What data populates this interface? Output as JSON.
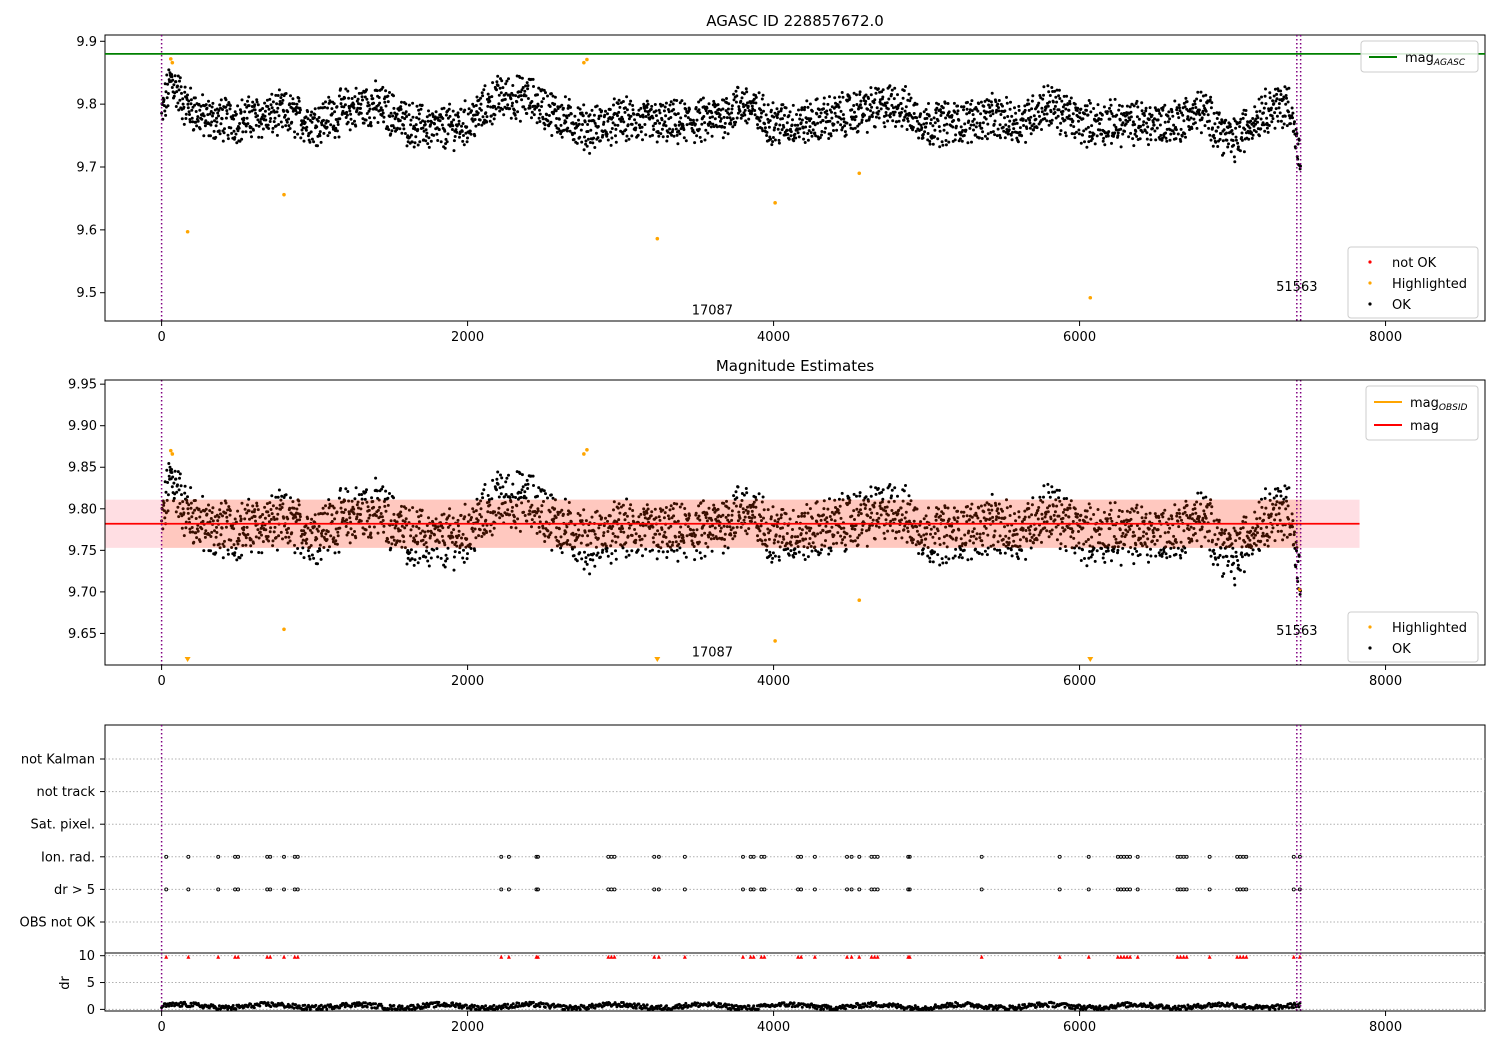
{
  "figure": {
    "title": "AGASC ID 228857672.0"
  },
  "chart_data": [
    {
      "type": "scatter",
      "subtitle": "",
      "xlim": [
        -370,
        8650
      ],
      "ylim": [
        9.455,
        9.91
      ],
      "xticks": [
        0,
        2000,
        4000,
        6000,
        8000
      ],
      "yticks": [
        9.5,
        9.6,
        9.7,
        9.8,
        9.9
      ],
      "grid": false,
      "legend": [
        {
          "label": "mag",
          "sub": "AGASC",
          "kind": "line",
          "color": "#008000",
          "placement": "top-right"
        }
      ],
      "legend2": [
        {
          "label": "not OK",
          "kind": "dot",
          "color": "#ff0000"
        },
        {
          "label": "Highlighted",
          "kind": "dot",
          "color": "#ffa500"
        },
        {
          "label": "OK",
          "kind": "dot",
          "color": "#000000"
        }
      ],
      "hlines": [
        {
          "y": 9.88,
          "color": "#008000"
        }
      ],
      "vlines": [
        {
          "x": 0,
          "color": "#800080"
        },
        {
          "x": 7420,
          "color": "#800080"
        },
        {
          "x": 7445,
          "color": "#800080"
        }
      ],
      "annotations": [
        {
          "text": "17087",
          "x": 3600,
          "y": 9.465
        },
        {
          "text": "51563",
          "x": 7420,
          "y": 9.503
        }
      ],
      "highlighted": [
        [
          60,
          9.872
        ],
        [
          70,
          9.866
        ],
        [
          170,
          9.597
        ],
        [
          800,
          9.656
        ],
        [
          2760,
          9.866
        ],
        [
          2780,
          9.871
        ],
        [
          3240,
          9.586
        ],
        [
          4010,
          9.643
        ],
        [
          4560,
          9.69
        ],
        [
          6070,
          9.492
        ]
      ],
      "trend": [
        [
          0,
          9.78
        ],
        [
          60,
          9.84
        ],
        [
          150,
          9.8
        ],
        [
          300,
          9.775
        ],
        [
          500,
          9.775
        ],
        [
          800,
          9.785
        ],
        [
          1000,
          9.77
        ],
        [
          1200,
          9.79
        ],
        [
          1400,
          9.8
        ],
        [
          1600,
          9.77
        ],
        [
          1800,
          9.76
        ],
        [
          2000,
          9.77
        ],
        [
          2200,
          9.81
        ],
        [
          2400,
          9.81
        ],
        [
          2600,
          9.78
        ],
        [
          2800,
          9.76
        ],
        [
          3000,
          9.775
        ],
        [
          3200,
          9.77
        ],
        [
          3400,
          9.77
        ],
        [
          3600,
          9.775
        ],
        [
          3800,
          9.8
        ],
        [
          4000,
          9.77
        ],
        [
          4200,
          9.77
        ],
        [
          4400,
          9.78
        ],
        [
          4600,
          9.79
        ],
        [
          4800,
          9.8
        ],
        [
          5000,
          9.77
        ],
        [
          5200,
          9.77
        ],
        [
          5400,
          9.78
        ],
        [
          5600,
          9.77
        ],
        [
          5800,
          9.8
        ],
        [
          6000,
          9.77
        ],
        [
          6200,
          9.77
        ],
        [
          6400,
          9.77
        ],
        [
          6600,
          9.77
        ],
        [
          6800,
          9.79
        ],
        [
          7000,
          9.74
        ],
        [
          7200,
          9.79
        ],
        [
          7380,
          9.8
        ],
        [
          7420,
          9.73
        ],
        [
          7445,
          9.7
        ]
      ]
    },
    {
      "type": "scatter",
      "subtitle": "Magnitude Estimates",
      "xlim": [
        -370,
        8650
      ],
      "ylim": [
        9.612,
        9.955
      ],
      "xticks": [
        0,
        2000,
        4000,
        6000,
        8000
      ],
      "yticks": [
        9.65,
        9.7,
        9.75,
        9.8,
        9.85,
        9.9,
        9.95
      ],
      "grid": false,
      "legend": [
        {
          "label": "mag",
          "sub": "OBSID",
          "kind": "line",
          "color": "#ffa500",
          "placement": "top-right"
        },
        {
          "label": "mag",
          "sub": "",
          "kind": "line",
          "color": "#ff0000",
          "placement": "top-right"
        }
      ],
      "legend2": [
        {
          "label": "Highlighted",
          "kind": "dot",
          "color": "#ffa500"
        },
        {
          "label": "OK",
          "kind": "dot",
          "color": "#000000"
        }
      ],
      "mag": 9.782,
      "band": [
        9.753,
        9.811
      ],
      "band_x": [
        -370,
        7830
      ],
      "vlines": [
        {
          "x": 0,
          "color": "#800080"
        },
        {
          "x": 7420,
          "color": "#800080"
        },
        {
          "x": 7445,
          "color": "#800080"
        }
      ],
      "annotations": [
        {
          "text": "17087",
          "x": 3600,
          "y": 9.622
        },
        {
          "text": "51563",
          "x": 7420,
          "y": 9.648
        }
      ],
      "highlighted": [
        [
          60,
          9.87
        ],
        [
          70,
          9.866
        ],
        [
          800,
          9.655
        ],
        [
          2760,
          9.866
        ],
        [
          2780,
          9.871
        ],
        [
          4010,
          9.641
        ],
        [
          4560,
          9.69
        ],
        [
          7440,
          9.703
        ]
      ],
      "offscale": [
        170,
        3240,
        6070
      ]
    },
    {
      "type": "scatter",
      "subtitle": "",
      "xlim": [
        -370,
        8650
      ],
      "categories": [
        "not Kalman",
        "not track",
        "Sat. pixel.",
        "Ion. rad.",
        "dr > 5",
        "OBS not OK"
      ],
      "flag_rows": [
        "Ion. rad.",
        "dr > 5"
      ],
      "flag_x": [
        30,
        175,
        370,
        480,
        500,
        690,
        710,
        800,
        870,
        890,
        2220,
        2270,
        2450,
        2460,
        2920,
        2940,
        2960,
        3220,
        3250,
        3420,
        3800,
        3850,
        3870,
        3920,
        3940,
        4160,
        4180,
        4270,
        4480,
        4510,
        4560,
        4640,
        4660,
        4680,
        4880,
        4890,
        5360,
        5870,
        6060,
        6250,
        6270,
        6290,
        6310,
        6330,
        6380,
        6640,
        6660,
        6680,
        6700,
        6850,
        7030,
        7050,
        7070,
        7090,
        7400,
        7440
      ],
      "dr_label": "dr",
      "dr_yticks": [
        0,
        5,
        10
      ],
      "dr_ylim": [
        -0.3,
        10.5
      ],
      "dr_marker_y": 9.8,
      "dr_base": 0.6,
      "vlines": [
        {
          "x": 0,
          "color": "#800080"
        },
        {
          "x": 7420,
          "color": "#800080"
        },
        {
          "x": 7445,
          "color": "#800080"
        }
      ],
      "xticks": [
        0,
        2000,
        4000,
        6000,
        8000
      ]
    }
  ]
}
